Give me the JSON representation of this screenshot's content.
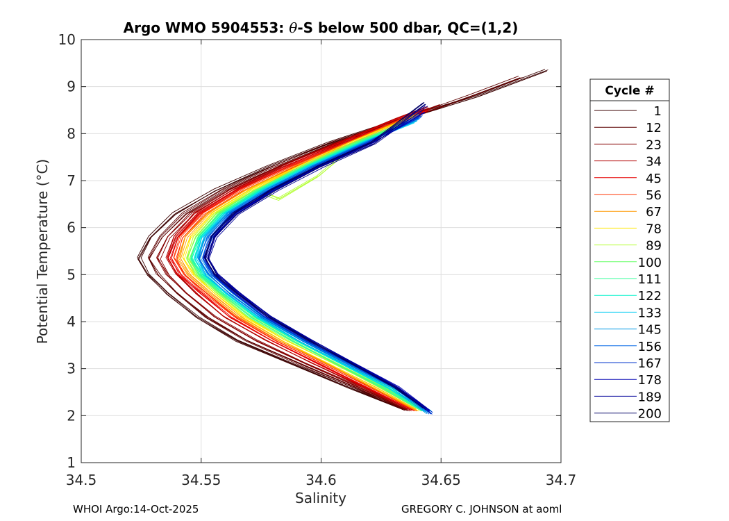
{
  "chart_data": {
    "type": "line",
    "title_prefix": "Argo WMO 5904553: ",
    "title_theta": "θ",
    "title_suffix": "-S below 500 dbar,  QC=(1,2)",
    "xlabel": "Salinity",
    "ylabel": "Potential Temperature (°C)",
    "xlim": [
      34.5,
      34.7
    ],
    "ylim": [
      1,
      10
    ],
    "xticks": [
      34.5,
      34.55,
      34.6,
      34.65,
      34.7
    ],
    "xtick_labels": [
      "34.5",
      "34.55",
      "34.6",
      "34.65",
      "34.7"
    ],
    "yticks": [
      1,
      2,
      3,
      4,
      5,
      6,
      7,
      8,
      9,
      10
    ],
    "ytick_labels": [
      "1",
      "2",
      "3",
      "4",
      "5",
      "6",
      "7",
      "8",
      "9",
      "10"
    ],
    "grid": true,
    "legend_title": "Cycle #",
    "legend_position": "right-outside",
    "series": [
      {
        "name": "1",
        "color": "#3b0000",
        "x": [
          34.634,
          34.612,
          34.588,
          34.565,
          34.548,
          34.536,
          34.528,
          34.524,
          34.529,
          34.539,
          34.556,
          34.578,
          34.603,
          34.633,
          34.665,
          34.694
        ],
        "y": [
          2.15,
          2.6,
          3.1,
          3.6,
          4.1,
          4.6,
          5.0,
          5.35,
          5.8,
          6.3,
          6.8,
          7.3,
          7.8,
          8.3,
          8.8,
          9.35
        ]
      },
      {
        "name": "12",
        "color": "#5c0000",
        "x": [
          34.635,
          34.614,
          34.591,
          34.569,
          34.552,
          34.54,
          34.532,
          34.528,
          34.533,
          34.543,
          34.559,
          34.581,
          34.605,
          34.634,
          34.662,
          34.683
        ],
        "y": [
          2.12,
          2.6,
          3.1,
          3.6,
          4.1,
          4.6,
          5.0,
          5.35,
          5.8,
          6.3,
          6.8,
          7.3,
          7.8,
          8.3,
          8.8,
          9.2
        ]
      },
      {
        "name": "23",
        "color": "#850000",
        "x": [
          34.636,
          34.616,
          34.594,
          34.573,
          34.556,
          34.544,
          34.536,
          34.532,
          34.536,
          34.546,
          34.562,
          34.583,
          34.607,
          34.633,
          34.65
        ],
        "y": [
          2.12,
          2.6,
          3.1,
          3.6,
          4.1,
          4.6,
          5.0,
          5.35,
          5.8,
          6.3,
          6.8,
          7.3,
          7.8,
          8.3,
          8.6
        ]
      },
      {
        "name": "34",
        "color": "#b30000",
        "x": [
          34.637,
          34.618,
          34.597,
          34.577,
          34.56,
          34.548,
          34.54,
          34.536,
          34.539,
          34.548,
          34.564,
          34.585,
          34.608,
          34.632,
          34.645
        ],
        "y": [
          2.12,
          2.6,
          3.1,
          3.6,
          4.1,
          4.6,
          5.0,
          5.35,
          5.8,
          6.3,
          6.8,
          7.3,
          7.8,
          8.3,
          8.55
        ]
      },
      {
        "name": "45",
        "color": "#e60000",
        "x": [
          34.638,
          34.619,
          34.599,
          34.579,
          34.562,
          34.55,
          34.541,
          34.537,
          34.54,
          34.549,
          34.565,
          34.586,
          34.609,
          34.633,
          34.644
        ],
        "y": [
          2.12,
          2.6,
          3.1,
          3.6,
          4.1,
          4.6,
          5.0,
          5.35,
          5.8,
          6.3,
          6.8,
          7.3,
          7.8,
          8.3,
          8.5
        ]
      },
      {
        "name": "56",
        "color": "#ff3300",
        "x": [
          34.639,
          34.621,
          34.601,
          34.581,
          34.564,
          34.552,
          34.543,
          34.539,
          34.542,
          34.551,
          34.567,
          34.588,
          34.611,
          34.634,
          34.642
        ],
        "y": [
          2.12,
          2.6,
          3.1,
          3.6,
          4.1,
          4.6,
          5.0,
          5.35,
          5.8,
          6.3,
          6.8,
          7.3,
          7.8,
          8.3,
          8.45
        ]
      },
      {
        "name": "67",
        "color": "#ff9900",
        "x": [
          34.64,
          34.622,
          34.603,
          34.583,
          34.566,
          34.554,
          34.545,
          34.541,
          34.544,
          34.553,
          34.569,
          34.59,
          34.612,
          34.635,
          34.641
        ],
        "y": [
          2.12,
          2.6,
          3.1,
          3.6,
          4.1,
          4.6,
          5.0,
          5.35,
          5.8,
          6.3,
          6.8,
          7.3,
          7.8,
          8.3,
          8.4
        ]
      },
      {
        "name": "78",
        "color": "#ffe600",
        "x": [
          34.641,
          34.624,
          34.605,
          34.585,
          34.568,
          34.556,
          34.547,
          34.543,
          34.546,
          34.555,
          34.571,
          34.591,
          34.613,
          34.636,
          34.641
        ],
        "y": [
          2.12,
          2.6,
          3.1,
          3.6,
          4.1,
          4.6,
          5.0,
          5.35,
          5.8,
          6.3,
          6.8,
          7.3,
          7.8,
          8.3,
          8.4
        ]
      },
      {
        "name": "89",
        "color": "#b3ff33",
        "x": [
          34.642,
          34.625,
          34.606,
          34.587,
          34.57,
          34.557,
          34.548,
          34.544,
          34.547,
          34.556,
          34.572,
          34.582,
          34.599,
          34.615
        ],
        "y": [
          2.12,
          2.6,
          3.1,
          3.6,
          4.1,
          4.6,
          5.0,
          5.35,
          5.8,
          6.3,
          6.8,
          6.6,
          7.1,
          7.8
        ]
      },
      {
        "name": "100",
        "color": "#66ff66",
        "x": [
          34.642,
          34.626,
          34.607,
          34.588,
          34.571,
          34.558,
          34.549,
          34.545,
          34.548,
          34.557,
          34.573,
          34.592,
          34.614,
          34.636
        ],
        "y": [
          2.12,
          2.6,
          3.1,
          3.6,
          4.1,
          4.6,
          5.0,
          5.35,
          5.8,
          6.3,
          6.8,
          7.3,
          7.8,
          8.25
        ]
      },
      {
        "name": "111",
        "color": "#33ff99",
        "x": [
          34.643,
          34.627,
          34.608,
          34.589,
          34.572,
          34.559,
          34.55,
          34.546,
          34.549,
          34.558,
          34.574,
          34.593,
          34.615,
          34.637
        ],
        "y": [
          2.12,
          2.6,
          3.1,
          3.6,
          4.1,
          4.6,
          5.0,
          5.35,
          5.8,
          6.3,
          6.8,
          7.3,
          7.8,
          8.25
        ]
      },
      {
        "name": "122",
        "color": "#00f2cc",
        "x": [
          34.644,
          34.628,
          34.609,
          34.59,
          34.573,
          34.56,
          34.551,
          34.547,
          34.55,
          34.559,
          34.575,
          34.594,
          34.616,
          34.638
        ],
        "y": [
          2.1,
          2.6,
          3.1,
          3.6,
          4.1,
          4.6,
          5.0,
          5.35,
          5.8,
          6.3,
          6.8,
          7.3,
          7.8,
          8.25
        ]
      },
      {
        "name": "133",
        "color": "#00ccf2",
        "x": [
          34.645,
          34.629,
          34.61,
          34.591,
          34.574,
          34.561,
          34.552,
          34.548,
          34.551,
          34.56,
          34.576,
          34.595,
          34.617,
          34.639
        ],
        "y": [
          2.08,
          2.6,
          3.1,
          3.6,
          4.1,
          4.6,
          5.0,
          5.35,
          5.8,
          6.3,
          6.8,
          7.3,
          7.8,
          8.25
        ]
      },
      {
        "name": "145",
        "color": "#0099e6",
        "x": [
          34.645,
          34.63,
          34.611,
          34.592,
          34.575,
          34.562,
          34.553,
          34.549,
          34.552,
          34.561,
          34.577,
          34.596,
          34.618,
          34.64
        ],
        "y": [
          2.06,
          2.6,
          3.1,
          3.6,
          4.1,
          4.6,
          5.0,
          5.35,
          5.8,
          6.3,
          6.8,
          7.3,
          7.8,
          8.3
        ]
      },
      {
        "name": "156",
        "color": "#0066e6",
        "x": [
          34.646,
          34.631,
          34.612,
          34.593,
          34.576,
          34.563,
          34.554,
          34.55,
          34.553,
          34.562,
          34.578,
          34.597,
          34.619,
          34.641
        ],
        "y": [
          2.05,
          2.6,
          3.1,
          3.6,
          4.1,
          4.6,
          5.0,
          5.35,
          5.8,
          6.3,
          6.8,
          7.3,
          7.8,
          8.35
        ]
      },
      {
        "name": "167",
        "color": "#0033cc",
        "x": [
          34.646,
          34.631,
          34.613,
          34.594,
          34.577,
          34.564,
          34.555,
          34.551,
          34.554,
          34.563,
          34.579,
          34.598,
          34.62,
          34.642
        ],
        "y": [
          2.05,
          2.6,
          3.1,
          3.6,
          4.1,
          4.6,
          5.0,
          5.35,
          5.8,
          6.3,
          6.8,
          7.3,
          7.8,
          8.4
        ]
      },
      {
        "name": "178",
        "color": "#0000b3",
        "x": [
          34.645,
          34.632,
          34.614,
          34.595,
          34.578,
          34.565,
          34.556,
          34.552,
          34.555,
          34.564,
          34.58,
          34.599,
          34.621,
          34.643
        ],
        "y": [
          2.1,
          2.6,
          3.1,
          3.6,
          4.1,
          4.6,
          5.0,
          5.35,
          5.8,
          6.3,
          6.8,
          7.3,
          7.8,
          8.45
        ]
      },
      {
        "name": "189",
        "color": "#000099",
        "x": [
          34.644,
          34.632,
          34.614,
          34.596,
          34.579,
          34.566,
          34.557,
          34.553,
          34.556,
          34.565,
          34.581,
          34.6,
          34.622,
          34.644
        ],
        "y": [
          2.15,
          2.6,
          3.1,
          3.6,
          4.1,
          4.6,
          5.0,
          5.35,
          5.8,
          6.3,
          6.8,
          7.3,
          7.8,
          8.6
        ]
      },
      {
        "name": "200",
        "color": "#000066",
        "x": [
          34.643,
          34.631,
          34.613,
          34.595,
          34.578,
          34.565,
          34.556,
          34.552,
          34.555,
          34.564,
          34.58,
          34.599,
          34.621,
          34.643
        ],
        "y": [
          2.15,
          2.6,
          3.1,
          3.6,
          4.1,
          4.6,
          5.0,
          5.35,
          5.8,
          6.3,
          6.8,
          7.3,
          7.8,
          8.65
        ]
      }
    ]
  },
  "footer": {
    "left": "WHOI Argo:14-Oct-2025",
    "right": "GREGORY C. JOHNSON at aoml"
  }
}
